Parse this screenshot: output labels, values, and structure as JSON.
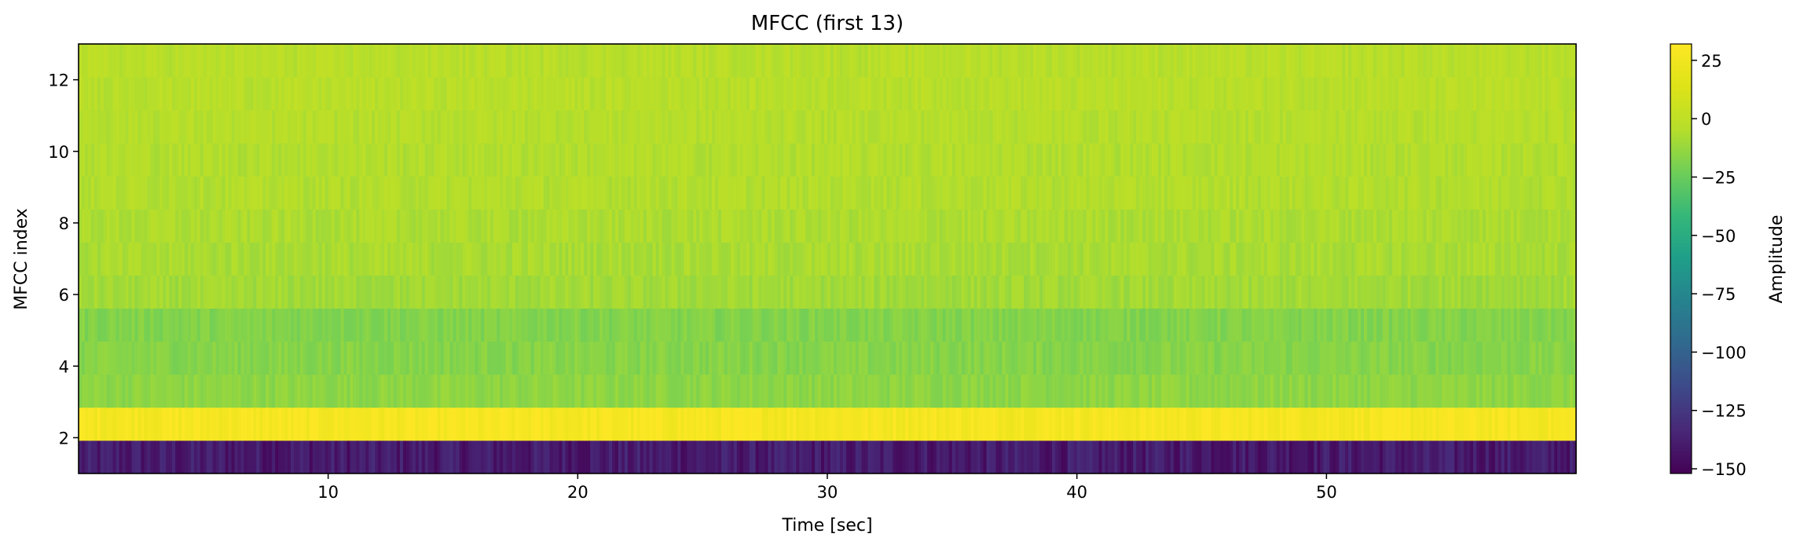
{
  "chart_data": {
    "type": "heatmap",
    "title": "MFCC (first 13)",
    "xlabel": "Time [sec]",
    "ylabel": "MFCC index",
    "xlim": [
      0,
      60
    ],
    "ylim": [
      1,
      13
    ],
    "x_ticks": [
      10,
      20,
      30,
      40,
      50
    ],
    "y_ticks": [
      2,
      4,
      6,
      8,
      10,
      12
    ],
    "colormap": "viridis",
    "grid": false,
    "colorbar": {
      "label": "Amplitude",
      "range": [
        -152,
        32
      ],
      "ticks": [
        25,
        0,
        -25,
        -50,
        -75,
        -100,
        -125,
        -150
      ]
    },
    "rows": [
      {
        "mfcc": 1,
        "approx_value": -140
      },
      {
        "mfcc": 2,
        "approx_value": 28
      },
      {
        "mfcc": 3,
        "approx_value": -15
      },
      {
        "mfcc": 4,
        "approx_value": -17
      },
      {
        "mfcc": 5,
        "approx_value": -18
      },
      {
        "mfcc": 6,
        "approx_value": -10
      },
      {
        "mfcc": 7,
        "approx_value": -8
      },
      {
        "mfcc": 8,
        "approx_value": -7
      },
      {
        "mfcc": 9,
        "approx_value": -5
      },
      {
        "mfcc": 10,
        "approx_value": -5
      },
      {
        "mfcc": 11,
        "approx_value": -4
      },
      {
        "mfcc": 12,
        "approx_value": -3
      },
      {
        "mfcc": 13,
        "approx_value": -3
      }
    ]
  }
}
